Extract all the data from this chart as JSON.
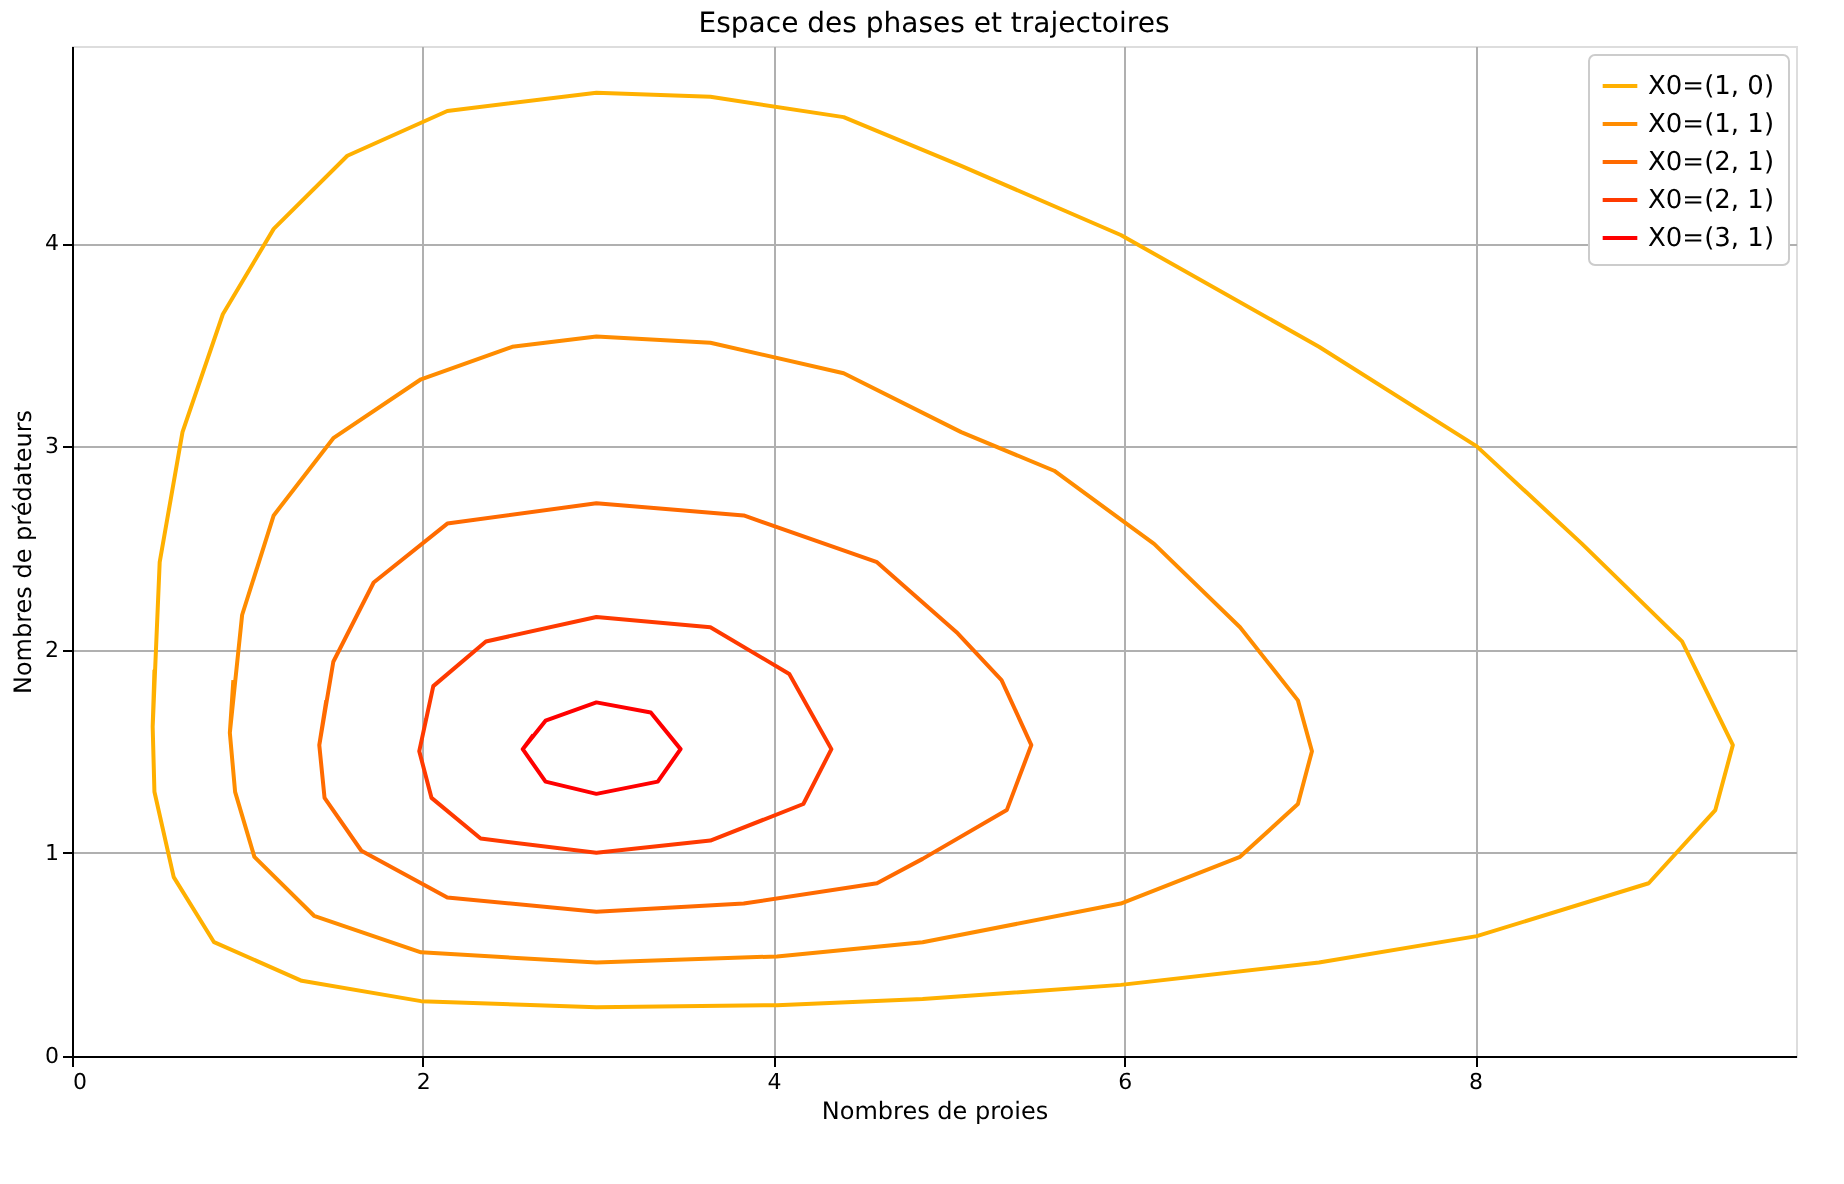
{
  "chart_data": {
    "type": "line",
    "title": "Espace des phases et trajectoires",
    "xlabel": "Nombres de proies",
    "ylabel": "Nombres de prédateurs",
    "xlim": [
      0,
      9.83
    ],
    "ylim": [
      0,
      4.97
    ],
    "xticks": [
      0,
      2,
      4,
      6,
      8
    ],
    "yticks": [
      0,
      1,
      2,
      3,
      4
    ],
    "grid": true,
    "legend": "top right",
    "marker": "none",
    "line_style": "solid",
    "series": [
      {
        "name": "X0=(1, 0)",
        "color": "#ffb000",
        "x": [
          0.46,
          0.5,
          0.63,
          0.86,
          1.15,
          1.57,
          2.14,
          2.99,
          3.64,
          4.4,
          5.07,
          5.98,
          7.11,
          8.01,
          8.61,
          9.18,
          9.47,
          9.37,
          8.99,
          8.01,
          7.11,
          5.98,
          4.85,
          4.02,
          2.99,
          1.99,
          1.31,
          0.81,
          0.58,
          0.47,
          0.46,
          0.47
        ],
        "values": [
          1.62,
          2.43,
          3.07,
          3.65,
          4.07,
          4.43,
          4.65,
          4.74,
          4.72,
          4.62,
          4.38,
          4.04,
          3.49,
          3.0,
          2.52,
          2.04,
          1.53,
          1.21,
          0.85,
          0.59,
          0.46,
          0.35,
          0.28,
          0.25,
          0.24,
          0.27,
          0.37,
          0.56,
          0.88,
          1.3,
          1.62,
          1.9
        ]
      },
      {
        "name": "X0=(1, 1)",
        "color": "#ff8c00",
        "x": [
          0.9,
          0.97,
          1.15,
          1.49,
          1.99,
          2.51,
          2.99,
          3.64,
          4.4,
          5.07,
          5.6,
          6.17,
          6.66,
          6.99,
          7.07,
          6.99,
          6.66,
          5.98,
          4.85,
          4.02,
          2.99,
          1.99,
          1.38,
          1.04,
          0.93,
          0.9,
          0.92
        ],
        "values": [
          1.59,
          2.17,
          2.66,
          3.04,
          3.33,
          3.49,
          3.54,
          3.51,
          3.36,
          3.07,
          2.88,
          2.52,
          2.11,
          1.75,
          1.5,
          1.24,
          0.98,
          0.75,
          0.56,
          0.49,
          0.46,
          0.51,
          0.69,
          0.98,
          1.3,
          1.59,
          1.85
        ]
      },
      {
        "name": "X0=(2, 1)",
        "color": "#ff6a00",
        "x": [
          1.41,
          1.49,
          1.72,
          2.14,
          2.99,
          3.83,
          4.59,
          5.05,
          5.3,
          5.47,
          5.33,
          4.85,
          4.59,
          3.83,
          2.99,
          2.14,
          1.65,
          1.44,
          1.41,
          1.45
        ],
        "values": [
          1.53,
          1.94,
          2.33,
          2.62,
          2.72,
          2.66,
          2.43,
          2.08,
          1.85,
          1.53,
          1.21,
          0.97,
          0.85,
          0.75,
          0.71,
          0.78,
          1.01,
          1.27,
          1.53,
          1.75
        ]
      },
      {
        "name": "X0=(2, 1)",
        "color": "#ff3a00",
        "x": [
          1.98,
          2.06,
          2.36,
          2.99,
          3.64,
          4.09,
          4.33,
          4.17,
          3.64,
          2.99,
          2.33,
          2.05,
          1.98,
          2.02
        ],
        "values": [
          1.5,
          1.82,
          2.04,
          2.16,
          2.11,
          1.88,
          1.51,
          1.24,
          1.06,
          1.0,
          1.07,
          1.27,
          1.5,
          1.66
        ]
      },
      {
        "name": "X0=(3, 1)",
        "color": "#ff0000",
        "x": [
          2.57,
          2.7,
          2.99,
          3.3,
          3.47,
          3.34,
          2.99,
          2.7,
          2.57,
          2.63
        ],
        "values": [
          1.51,
          1.65,
          1.74,
          1.69,
          1.51,
          1.35,
          1.29,
          1.35,
          1.51,
          1.58
        ]
      }
    ]
  }
}
